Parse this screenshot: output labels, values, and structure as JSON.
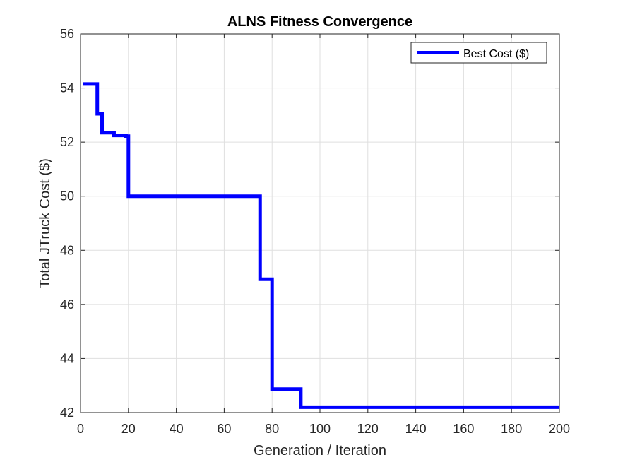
{
  "chart_data": {
    "type": "line",
    "title": "ALNS Fitness Convergence",
    "xlabel": "Generation / Iteration",
    "ylabel": "Total JTruck Cost ($)",
    "xlim": [
      0,
      200
    ],
    "ylim": [
      42,
      56
    ],
    "xticks": [
      0,
      20,
      40,
      60,
      80,
      100,
      120,
      140,
      160,
      180,
      200
    ],
    "yticks": [
      42,
      44,
      46,
      48,
      50,
      52,
      54,
      56
    ],
    "grid": true,
    "legend_position": "top-right",
    "series": [
      {
        "name": "Best Cost ($)",
        "color": "#0000ff",
        "step": true,
        "x": [
          1,
          7,
          9,
          14,
          19,
          20,
          75,
          80,
          92,
          200
        ],
        "y": [
          54.15,
          53.05,
          52.35,
          52.25,
          52.22,
          50.0,
          46.93,
          42.87,
          42.2,
          42.2
        ]
      }
    ]
  }
}
